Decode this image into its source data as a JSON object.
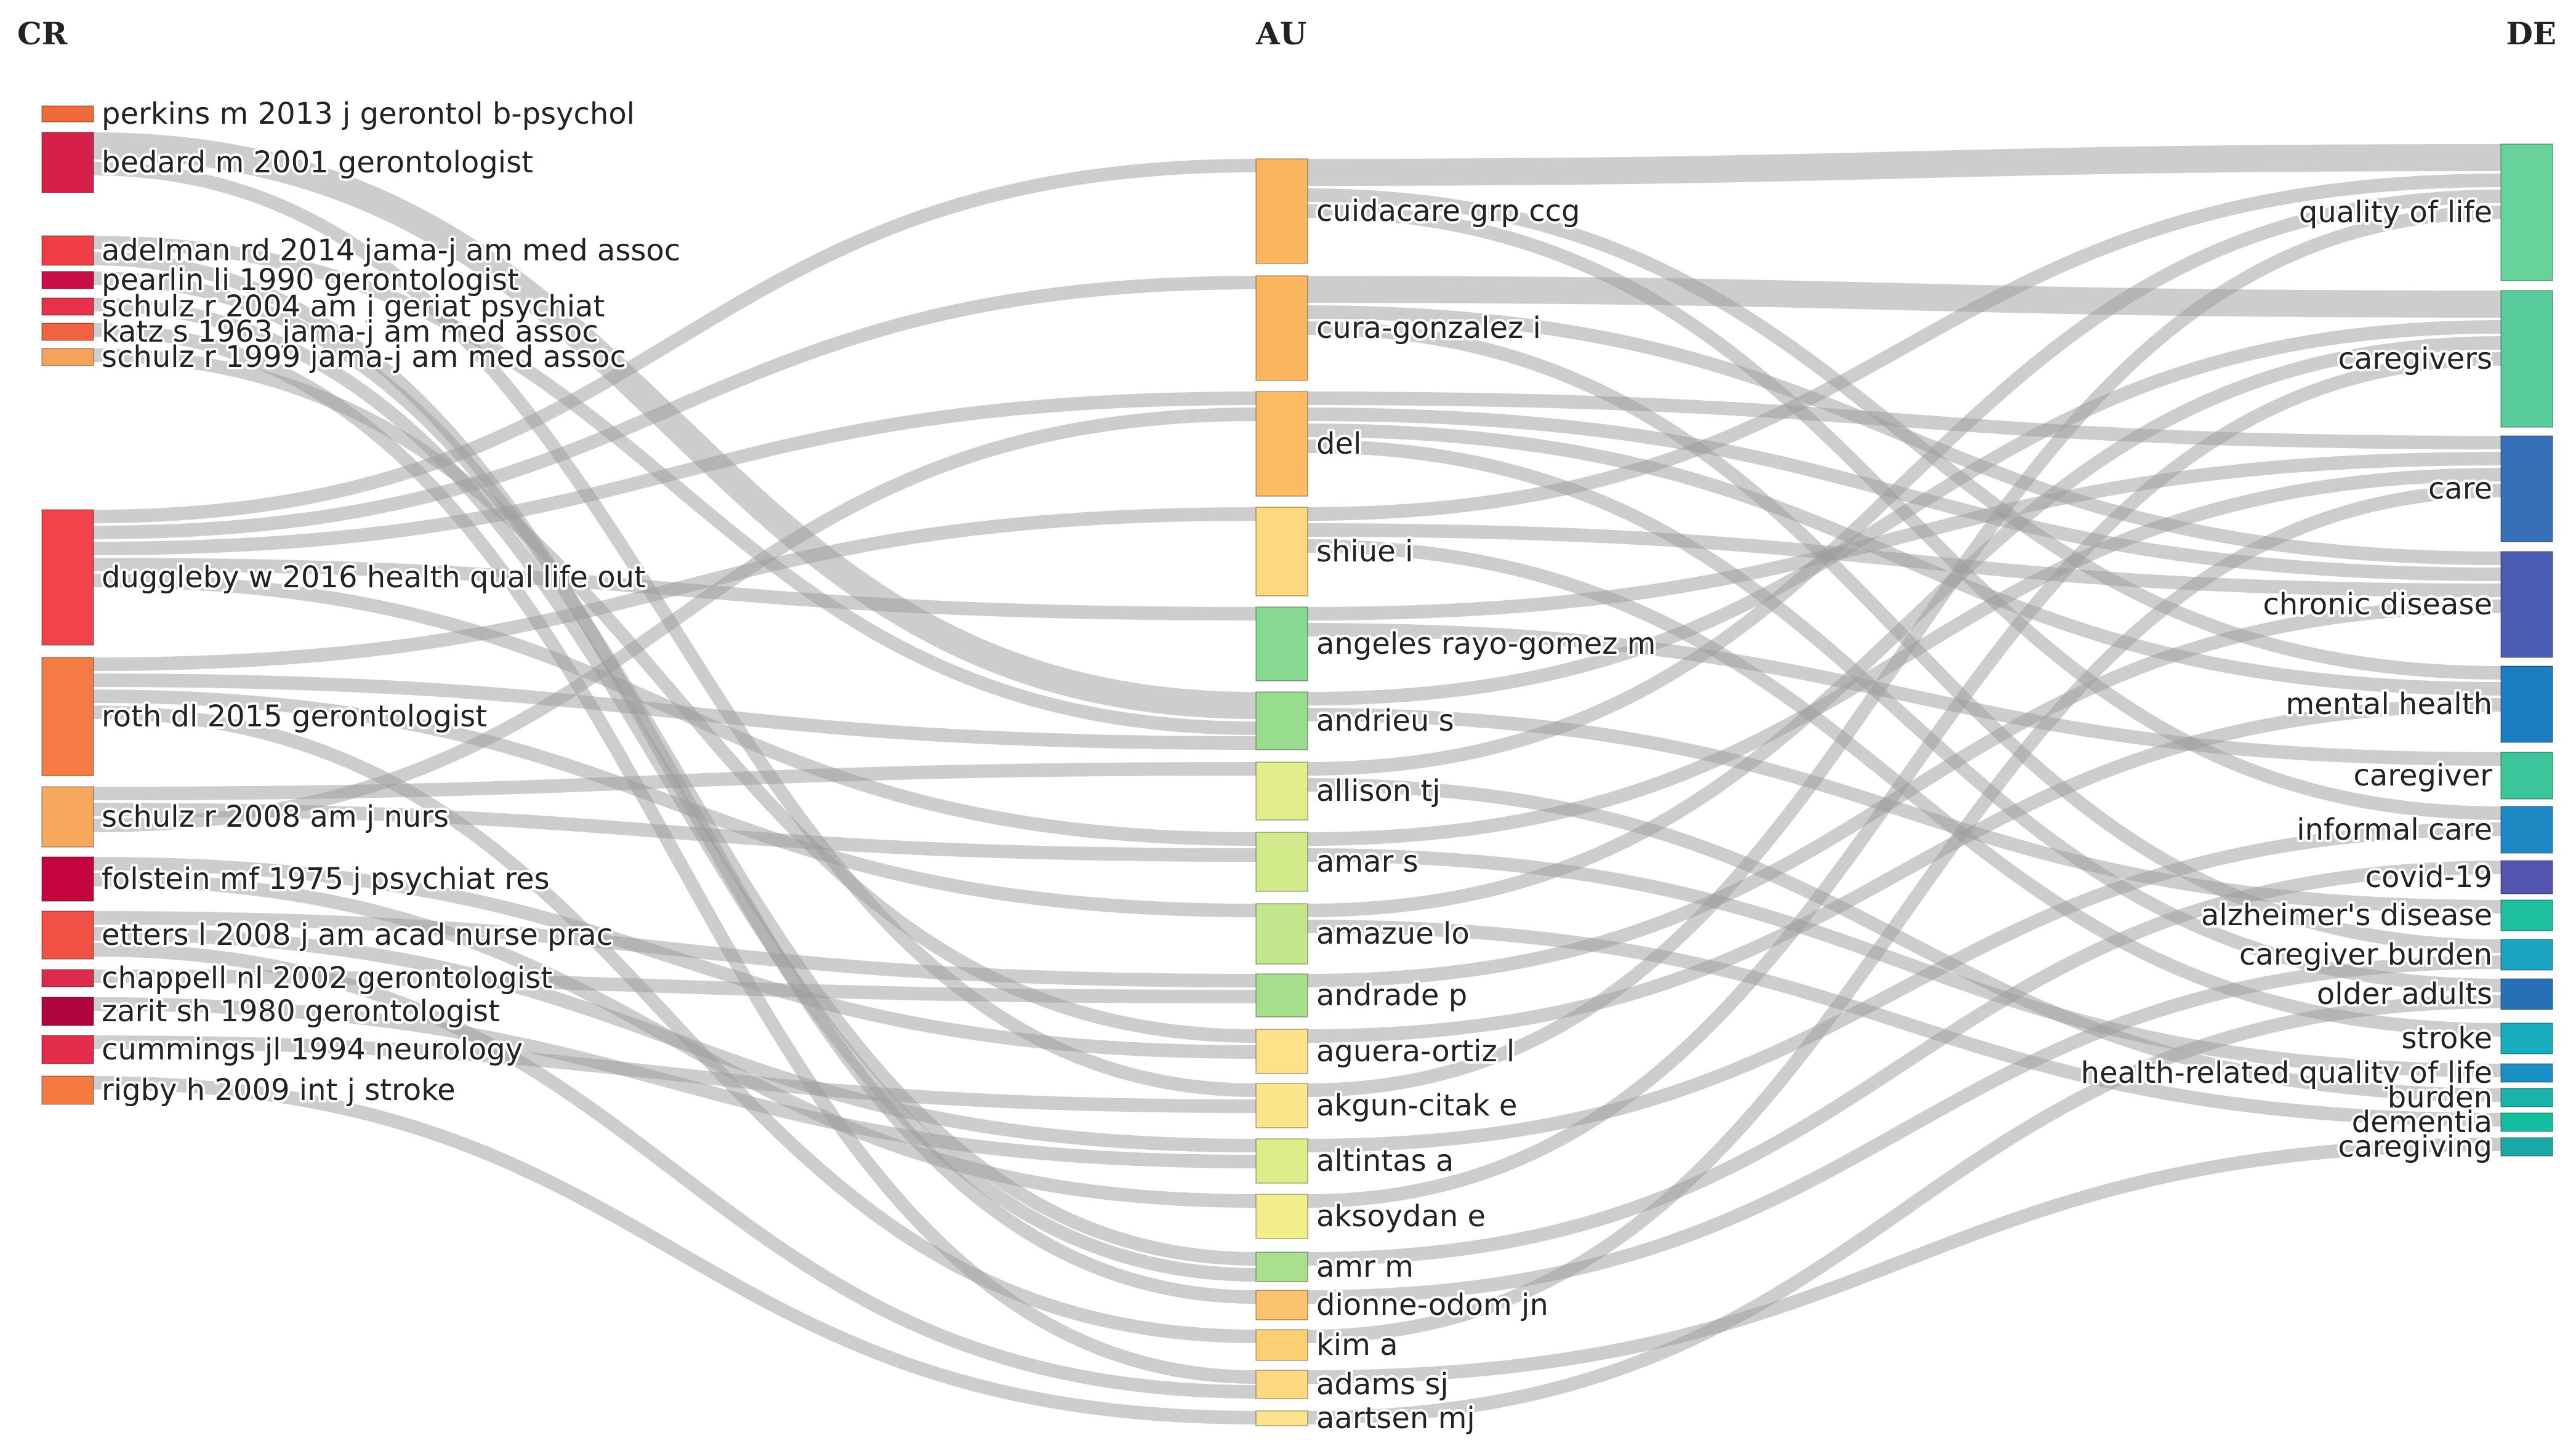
{
  "diagram": {
    "type": "sankey",
    "columns": [
      {
        "key": "CR",
        "title": "CR"
      },
      {
        "key": "AU",
        "title": "AU"
      },
      {
        "key": "DE",
        "title": "DE"
      }
    ],
    "nodes": {
      "CR": [
        {
          "label": "perkins m 2013 j gerontol b-psychol",
          "color": "#f06a3a"
        },
        {
          "label": "bedard m 2001 gerontologist",
          "color": "#d6204a"
        },
        {
          "label": "adelman rd 2014 jama-j am med assoc",
          "color": "#ef3d45"
        },
        {
          "label": "pearlin li 1990 gerontologist",
          "color": "#c90f4a"
        },
        {
          "label": "schulz r 2004 am j geriat psychiat",
          "color": "#e8304a"
        },
        {
          "label": "katz s 1963 jama-j am med assoc",
          "color": "#f26441"
        },
        {
          "label": "schulz r 1999 jama-j am med assoc",
          "color": "#f6a35a"
        },
        {
          "label": "duggleby w 2016 health qual life out",
          "color": "#f0444a"
        },
        {
          "label": "roth dl 2015 gerontologist",
          "color": "#f47c44"
        },
        {
          "label": "schulz r 2008 am j nurs",
          "color": "#f8a85d"
        },
        {
          "label": "folstein mf 1975 j psychiat res",
          "color": "#c4043f"
        },
        {
          "label": "etters l 2008 j am acad nurse prac",
          "color": "#f15045"
        },
        {
          "label": "chappell nl 2002 gerontologist",
          "color": "#dd2a4b"
        },
        {
          "label": "zarit sh 1980 gerontologist",
          "color": "#b0033c"
        },
        {
          "label": "cummings jl 1994 neurology",
          "color": "#e42c4a"
        },
        {
          "label": "rigby h 2009 int j stroke",
          "color": "#f57a42"
        }
      ],
      "AU": [
        {
          "label": "cuidacare grp ccg",
          "color": "#fbb55f"
        },
        {
          "label": "cura-gonzalez i",
          "color": "#fbb55f"
        },
        {
          "label": "del",
          "color": "#fbbb64"
        },
        {
          "label": "shiue i",
          "color": "#fdd87f"
        },
        {
          "label": "angeles rayo-gomez m",
          "color": "#86d98e"
        },
        {
          "label": "andrieu s",
          "color": "#98dd8d"
        },
        {
          "label": "allison tj",
          "color": "#e3ee8a"
        },
        {
          "label": "amar s",
          "color": "#d2ea8a"
        },
        {
          "label": "amazue lo",
          "color": "#c4e68a"
        },
        {
          "label": "andrade p",
          "color": "#a6e08d"
        },
        {
          "label": "aguera-ortiz l",
          "color": "#fde289"
        },
        {
          "label": "akgun-citak e",
          "color": "#fde58b"
        },
        {
          "label": "altintas a",
          "color": "#dcee8a"
        },
        {
          "label": "aksoydan e",
          "color": "#f3ee8c"
        },
        {
          "label": "amr m",
          "color": "#a9df8d"
        },
        {
          "label": "dionne-odom jn",
          "color": "#fbc36d"
        },
        {
          "label": "kim a",
          "color": "#fdcf75"
        },
        {
          "label": "adams sj",
          "color": "#fdd97f"
        },
        {
          "label": "aartsen mj",
          "color": "#fde38c"
        }
      ],
      "DE": [
        {
          "label": "quality of life",
          "color": "#66d39b"
        },
        {
          "label": "caregivers",
          "color": "#57cc9a"
        },
        {
          "label": "care",
          "color": "#3870b8"
        },
        {
          "label": "chronic disease",
          "color": "#4a5db2"
        },
        {
          "label": "mental health",
          "color": "#1a7ec0"
        },
        {
          "label": "caregiver",
          "color": "#3cc59a"
        },
        {
          "label": "informal care",
          "color": "#1f87c3"
        },
        {
          "label": "covid-19",
          "color": "#5354ad"
        },
        {
          "label": "alzheimer's disease",
          "color": "#1dbf9c"
        },
        {
          "label": "caregiver burden",
          "color": "#19a3be"
        },
        {
          "label": "older adults",
          "color": "#2670b6"
        },
        {
          "label": "stroke",
          "color": "#16aebd"
        },
        {
          "label": "health-related quality of life",
          "color": "#1a8fc2"
        },
        {
          "label": "burden",
          "color": "#18b3ab"
        },
        {
          "label": "dementia",
          "color": "#14bd9e"
        },
        {
          "label": "caregiving",
          "color": "#1aa8a6"
        }
      ]
    },
    "links": [
      [
        "CR",
        1,
        "AU",
        5,
        2
      ],
      [
        "CR",
        1,
        "AU",
        11,
        1
      ],
      [
        "CR",
        2,
        "AU",
        5,
        1
      ],
      [
        "CR",
        2,
        "AU",
        15,
        1
      ],
      [
        "CR",
        3,
        "AU",
        14,
        1
      ],
      [
        "CR",
        4,
        "AU",
        14,
        1
      ],
      [
        "CR",
        5,
        "AU",
        17,
        1
      ],
      [
        "CR",
        6,
        "AU",
        10,
        1
      ],
      [
        "CR",
        7,
        "AU",
        0,
        1
      ],
      [
        "CR",
        7,
        "AU",
        1,
        1
      ],
      [
        "CR",
        7,
        "AU",
        2,
        1
      ],
      [
        "CR",
        7,
        "AU",
        4,
        1
      ],
      [
        "CR",
        7,
        "AU",
        7,
        1
      ],
      [
        "CR",
        8,
        "AU",
        3,
        1
      ],
      [
        "CR",
        8,
        "AU",
        5,
        1
      ],
      [
        "CR",
        8,
        "AU",
        8,
        1
      ],
      [
        "CR",
        8,
        "AU",
        16,
        1
      ],
      [
        "CR",
        9,
        "AU",
        6,
        1
      ],
      [
        "CR",
        9,
        "AU",
        7,
        1
      ],
      [
        "CR",
        9,
        "AU",
        2,
        1
      ],
      [
        "CR",
        10,
        "AU",
        10,
        1
      ],
      [
        "CR",
        10,
        "AU",
        13,
        1
      ],
      [
        "CR",
        11,
        "AU",
        9,
        1
      ],
      [
        "CR",
        11,
        "AU",
        12,
        1
      ],
      [
        "CR",
        11,
        "AU",
        17,
        1
      ],
      [
        "CR",
        12,
        "AU",
        9,
        1
      ],
      [
        "CR",
        13,
        "AU",
        12,
        1
      ],
      [
        "CR",
        14,
        "AU",
        11,
        1
      ],
      [
        "CR",
        15,
        "AU",
        18,
        1
      ],
      [
        "AU",
        0,
        "DE",
        0,
        2
      ],
      [
        "AU",
        0,
        "DE",
        4,
        1
      ],
      [
        "AU",
        0,
        "DE",
        6,
        1
      ],
      [
        "AU",
        1,
        "DE",
        1,
        2
      ],
      [
        "AU",
        1,
        "DE",
        3,
        1
      ],
      [
        "AU",
        1,
        "DE",
        9,
        1
      ],
      [
        "AU",
        2,
        "DE",
        2,
        1
      ],
      [
        "AU",
        2,
        "DE",
        3,
        1
      ],
      [
        "AU",
        2,
        "DE",
        4,
        1
      ],
      [
        "AU",
        2,
        "DE",
        10,
        1
      ],
      [
        "AU",
        3,
        "DE",
        0,
        1
      ],
      [
        "AU",
        3,
        "DE",
        3,
        1
      ],
      [
        "AU",
        3,
        "DE",
        11,
        1
      ],
      [
        "AU",
        4,
        "DE",
        2,
        1
      ],
      [
        "AU",
        4,
        "DE",
        5,
        1
      ],
      [
        "AU",
        5,
        "DE",
        1,
        1
      ],
      [
        "AU",
        5,
        "DE",
        8,
        1
      ],
      [
        "AU",
        6,
        "DE",
        0,
        1
      ],
      [
        "AU",
        6,
        "DE",
        13,
        1
      ],
      [
        "AU",
        7,
        "DE",
        2,
        1
      ],
      [
        "AU",
        7,
        "DE",
        12,
        1
      ],
      [
        "AU",
        8,
        "DE",
        1,
        1
      ],
      [
        "AU",
        8,
        "DE",
        14,
        1
      ],
      [
        "AU",
        9,
        "DE",
        3,
        1
      ],
      [
        "AU",
        10,
        "DE",
        4,
        1
      ],
      [
        "AU",
        11,
        "DE",
        0,
        1
      ],
      [
        "AU",
        12,
        "DE",
        6,
        1
      ],
      [
        "AU",
        13,
        "DE",
        1,
        1
      ],
      [
        "AU",
        14,
        "DE",
        7,
        1
      ],
      [
        "AU",
        15,
        "DE",
        9,
        1
      ],
      [
        "AU",
        16,
        "DE",
        2,
        1
      ],
      [
        "AU",
        17,
        "DE",
        15,
        1
      ],
      [
        "AU",
        18,
        "DE",
        10,
        1
      ]
    ]
  }
}
